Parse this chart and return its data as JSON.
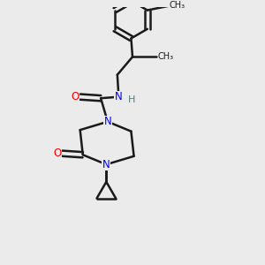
{
  "background_color": "#ebebeb",
  "bond_color": "#1a1a1a",
  "nitrogen_color": "#0000ee",
  "oxygen_color": "#ee0000",
  "hydrogen_color": "#4a7f7f",
  "line_width": 1.8,
  "figsize": [
    3.0,
    3.0
  ],
  "dpi": 100,
  "xlim": [
    0.05,
    0.85
  ],
  "ylim": [
    0.04,
    0.97
  ]
}
